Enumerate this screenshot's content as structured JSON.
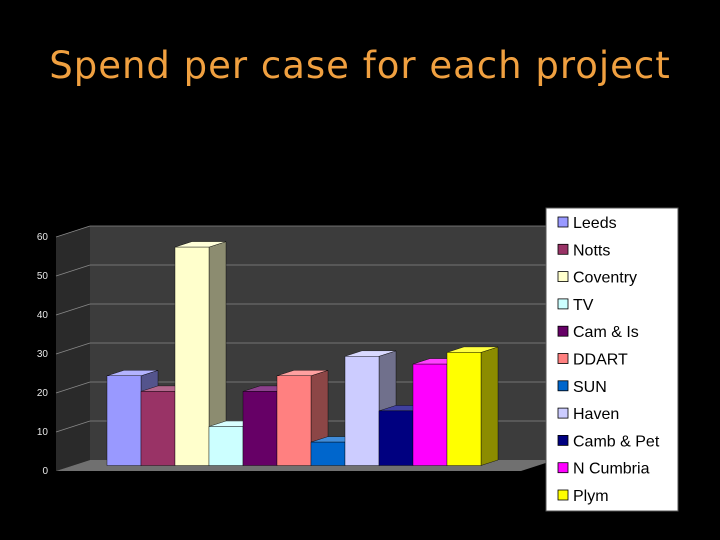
{
  "slide": {
    "title": "Spend per case for each project"
  },
  "chart_data": {
    "type": "bar",
    "categories": [
      "Leeds",
      "Notts",
      "Coventry",
      "TV",
      "Cam & Is",
      "DDART",
      "SUN",
      "Haven",
      "Camb & Pet",
      "N Cumbria",
      "Plym"
    ],
    "values": [
      23,
      19,
      56,
      10,
      19,
      23,
      6,
      28,
      14,
      26,
      29
    ],
    "colors": [
      "#9999FF",
      "#993366",
      "#FFFFCC",
      "#CCFFFF",
      "#660066",
      "#FF8080",
      "#0066CC",
      "#CCCCFF",
      "#000080",
      "#FF00FF",
      "#FFFF00"
    ],
    "ylim": [
      0,
      60
    ],
    "yticks": [
      0,
      10,
      20,
      30,
      40,
      50,
      60
    ],
    "style": "3d",
    "legend": "right",
    "grid": true,
    "title": "",
    "xlabel": "",
    "ylabel": ""
  }
}
